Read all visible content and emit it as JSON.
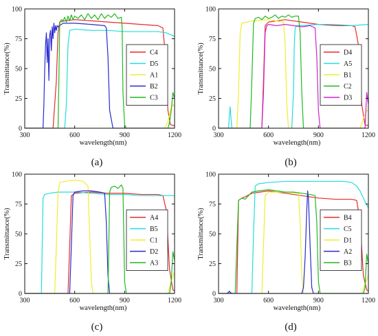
{
  "chart_data": [
    {
      "type": "line",
      "panel_label": "(a)",
      "xlabel": "wavelength(nm)",
      "ylabel": "Transmittance(%)",
      "xlim": [
        300,
        1200
      ],
      "ylim": [
        0,
        100
      ],
      "x_ticks": [
        300,
        600,
        900,
        1200
      ],
      "y_ticks": [
        0,
        25,
        50,
        75,
        100
      ],
      "grid": false,
      "legend_position": "center-right",
      "series": [
        {
          "name": "C4",
          "color": "#e8282b",
          "x": [
            300,
            470,
            490,
            500,
            510,
            540,
            600,
            700,
            800,
            900,
            1000,
            1100,
            1130,
            1145,
            1160,
            1175,
            1200
          ],
          "y": [
            0,
            0,
            40,
            80,
            89,
            90,
            91,
            90,
            89,
            88,
            87,
            86,
            84,
            60,
            15,
            3,
            2
          ]
        },
        {
          "name": "D5",
          "color": "#22dcdc",
          "x": [
            300,
            540,
            550,
            560,
            570,
            600,
            700,
            800,
            900,
            1000,
            1100,
            1150,
            1200
          ],
          "y": [
            0,
            0,
            20,
            70,
            82,
            83,
            82,
            82,
            81,
            81,
            81,
            80,
            77
          ]
        },
        {
          "name": "A1",
          "color": "#eeee2a",
          "x": [
            300,
            1140,
            1160,
            1175,
            1190,
            1200
          ],
          "y": [
            0,
            0,
            5,
            15,
            20,
            18
          ]
        },
        {
          "name": "B2",
          "color": "#2828d0",
          "x": [
            300,
            410,
            415,
            420,
            425,
            430,
            435,
            440,
            445,
            450,
            455,
            460,
            465,
            470,
            475,
            480,
            485,
            490,
            495,
            500,
            510,
            520,
            530,
            600,
            700,
            780,
            790,
            800,
            810,
            830,
            1200
          ],
          "y": [
            0,
            0,
            20,
            50,
            70,
            80,
            55,
            75,
            40,
            78,
            82,
            65,
            85,
            75,
            88,
            80,
            86,
            82,
            86,
            85,
            86,
            87,
            88,
            88,
            87,
            86,
            84,
            60,
            15,
            0,
            0
          ]
        },
        {
          "name": "C3",
          "color": "#1fb81f",
          "x": [
            300,
            500,
            505,
            510,
            520,
            530,
            540,
            550,
            560,
            570,
            580,
            590,
            600,
            620,
            640,
            660,
            680,
            700,
            720,
            740,
            760,
            780,
            800,
            820,
            840,
            860,
            880,
            885,
            890,
            900,
            910,
            1160,
            1170,
            1180,
            1190,
            1200
          ],
          "y": [
            0,
            0,
            40,
            88,
            91,
            90,
            93,
            89,
            94,
            90,
            95,
            91,
            94,
            92,
            95,
            91,
            96,
            92,
            95,
            91,
            96,
            92,
            95,
            93,
            96,
            92,
            93,
            85,
            30,
            3,
            0,
            0,
            5,
            15,
            30,
            25
          ]
        }
      ]
    },
    {
      "type": "line",
      "panel_label": "(b)",
      "xlabel": "wavelength(nm)",
      "ylabel": "Transmittance(%)",
      "xlim": [
        300,
        1200
      ],
      "ylim": [
        0,
        100
      ],
      "x_ticks": [
        300,
        600,
        900,
        1200
      ],
      "y_ticks": [
        0,
        25,
        50,
        75,
        100
      ],
      "grid": false,
      "legend_position": "center-right",
      "series": [
        {
          "name": "D4",
          "color": "#e8282b",
          "x": [
            300,
            560,
            570,
            580,
            600,
            700,
            800,
            900,
            1000,
            1100,
            1120,
            1140,
            1160,
            1180,
            1200
          ],
          "y": [
            0,
            0,
            40,
            86,
            89,
            91,
            89,
            87,
            86,
            86,
            85,
            70,
            20,
            3,
            2
          ]
        },
        {
          "name": "A5",
          "color": "#22dcdc",
          "x": [
            300,
            360,
            365,
            370,
            375,
            380,
            390,
            740,
            750,
            755,
            760,
            770,
            800,
            900,
            1000,
            1100,
            1200
          ],
          "y": [
            0,
            0,
            10,
            18,
            8,
            0,
            0,
            0,
            30,
            70,
            84,
            86,
            86,
            87,
            87,
            86,
            87
          ]
        },
        {
          "name": "B1",
          "color": "#eeee2a",
          "x": [
            300,
            410,
            420,
            430,
            440,
            500,
            600,
            690,
            700,
            710,
            720,
            1150,
            1170,
            1190,
            1200
          ],
          "y": [
            0,
            0,
            30,
            80,
            88,
            90,
            91,
            89,
            70,
            20,
            0,
            0,
            8,
            15,
            14
          ]
        },
        {
          "name": "C2",
          "color": "#1fb81f",
          "x": [
            300,
            490,
            500,
            510,
            520,
            540,
            560,
            580,
            600,
            620,
            640,
            660,
            680,
            700,
            720,
            740,
            760,
            780,
            790,
            800,
            810,
            1200
          ],
          "y": [
            0,
            0,
            40,
            88,
            92,
            93,
            91,
            94,
            92,
            93,
            95,
            92,
            94,
            93,
            95,
            93,
            94,
            94,
            80,
            30,
            0,
            0
          ]
        },
        {
          "name": "D3",
          "color": "#cc22cc",
          "x": [
            300,
            560,
            570,
            580,
            590,
            600,
            650,
            700,
            750,
            800,
            850,
            880,
            890,
            900,
            910,
            1180,
            1190,
            1200
          ],
          "y": [
            0,
            0,
            30,
            80,
            86,
            87,
            86,
            87,
            86,
            85,
            86,
            84,
            60,
            15,
            0,
            0,
            30,
            20
          ]
        }
      ]
    },
    {
      "type": "line",
      "panel_label": "(c)",
      "xlabel": "wavelength(nm)",
      "ylabel": "Transmittance(%)",
      "xlim": [
        300,
        1200
      ],
      "ylim": [
        0,
        100
      ],
      "x_ticks": [
        300,
        600,
        900,
        1200
      ],
      "y_ticks": [
        0,
        25,
        50,
        75,
        100
      ],
      "grid": false,
      "legend_position": "center-right",
      "series": [
        {
          "name": "A4",
          "color": "#e8282b",
          "x": [
            300,
            560,
            570,
            580,
            600,
            700,
            800,
            900,
            1000,
            1100,
            1130,
            1150,
            1170,
            1190,
            1200
          ],
          "y": [
            0,
            0,
            40,
            82,
            84,
            85,
            84,
            84,
            83,
            83,
            82,
            70,
            20,
            3,
            2
          ]
        },
        {
          "name": "B5",
          "color": "#22dcdc",
          "x": [
            300,
            400,
            405,
            410,
            420,
            450,
            500,
            600,
            700,
            800,
            900,
            1000,
            1100,
            1200
          ],
          "y": [
            0,
            0,
            40,
            80,
            83,
            84,
            85,
            85,
            84,
            83,
            83,
            82,
            82,
            82
          ]
        },
        {
          "name": "C1",
          "color": "#eeee2a",
          "x": [
            300,
            480,
            490,
            500,
            510,
            540,
            600,
            650,
            680,
            690,
            700,
            710,
            1160,
            1180,
            1200
          ],
          "y": [
            0,
            0,
            40,
            85,
            93,
            94,
            95,
            94,
            90,
            50,
            10,
            0,
            0,
            10,
            18
          ]
        },
        {
          "name": "D2",
          "color": "#2828d0",
          "x": [
            300,
            570,
            580,
            590,
            600,
            650,
            700,
            750,
            780,
            790,
            800,
            810,
            1200
          ],
          "y": [
            0,
            0,
            40,
            82,
            85,
            86,
            86,
            85,
            84,
            60,
            15,
            0,
            0
          ]
        },
        {
          "name": "A3",
          "color": "#1fb81f",
          "x": [
            300,
            800,
            805,
            810,
            820,
            840,
            860,
            880,
            890,
            895,
            900,
            910,
            1170,
            1180,
            1190,
            1200
          ],
          "y": [
            0,
            0,
            40,
            85,
            89,
            90,
            88,
            91,
            88,
            50,
            10,
            0,
            0,
            10,
            35,
            28
          ]
        }
      ]
    },
    {
      "type": "line",
      "panel_label": "(d)",
      "xlabel": "wavelength(nm)",
      "ylabel": "Transmittance(%)",
      "xlim": [
        300,
        1200
      ],
      "ylim": [
        0,
        100
      ],
      "x_ticks": [
        300,
        600,
        900,
        1200
      ],
      "y_ticks": [
        0,
        25,
        50,
        75,
        100
      ],
      "grid": false,
      "legend_position": "center-right",
      "series": [
        {
          "name": "B4",
          "color": "#e8282b",
          "x": [
            300,
            410,
            420,
            440,
            460,
            500,
            550,
            600,
            700,
            800,
            900,
            1000,
            1100,
            1130,
            1150,
            1170,
            1190,
            1200
          ],
          "y": [
            0,
            0,
            78,
            80,
            81,
            84,
            85,
            86,
            84,
            82,
            80,
            79,
            79,
            78,
            60,
            15,
            3,
            2
          ]
        },
        {
          "name": "C5",
          "color": "#22dcdc",
          "x": [
            300,
            500,
            510,
            520,
            540,
            600,
            700,
            800,
            900,
            1000,
            1050,
            1100,
            1130,
            1150,
            1170,
            1190,
            1200
          ],
          "y": [
            0,
            0,
            50,
            90,
            92,
            93,
            94,
            94,
            94,
            94,
            94,
            93,
            90,
            86,
            80,
            74,
            72
          ]
        },
        {
          "name": "D1",
          "color": "#eeee2a",
          "x": [
            300,
            560,
            570,
            580,
            600,
            700,
            780,
            790,
            800,
            810,
            1160,
            1180,
            1200
          ],
          "y": [
            0,
            0,
            40,
            82,
            85,
            85,
            84,
            60,
            15,
            0,
            0,
            8,
            15
          ]
        },
        {
          "name": "A2",
          "color": "#2828d0",
          "x": [
            300,
            350,
            360,
            365,
            370,
            380,
            800,
            810,
            820,
            830,
            835,
            840,
            850,
            860,
            870,
            1200
          ],
          "y": [
            0,
            0,
            1,
            2,
            1,
            0,
            0,
            5,
            30,
            70,
            86,
            80,
            40,
            5,
            0,
            0
          ]
        },
        {
          "name": "B3",
          "color": "#1fb81f",
          "x": [
            300,
            400,
            410,
            420,
            440,
            460,
            500,
            540,
            600,
            650,
            700,
            750,
            800,
            850,
            880,
            890,
            900,
            910,
            1170,
            1180,
            1190,
            1200
          ],
          "y": [
            0,
            0,
            40,
            78,
            80,
            79,
            85,
            86,
            87,
            86,
            85,
            85,
            84,
            83,
            82,
            60,
            10,
            0,
            0,
            5,
            33,
            25
          ]
        }
      ]
    }
  ]
}
